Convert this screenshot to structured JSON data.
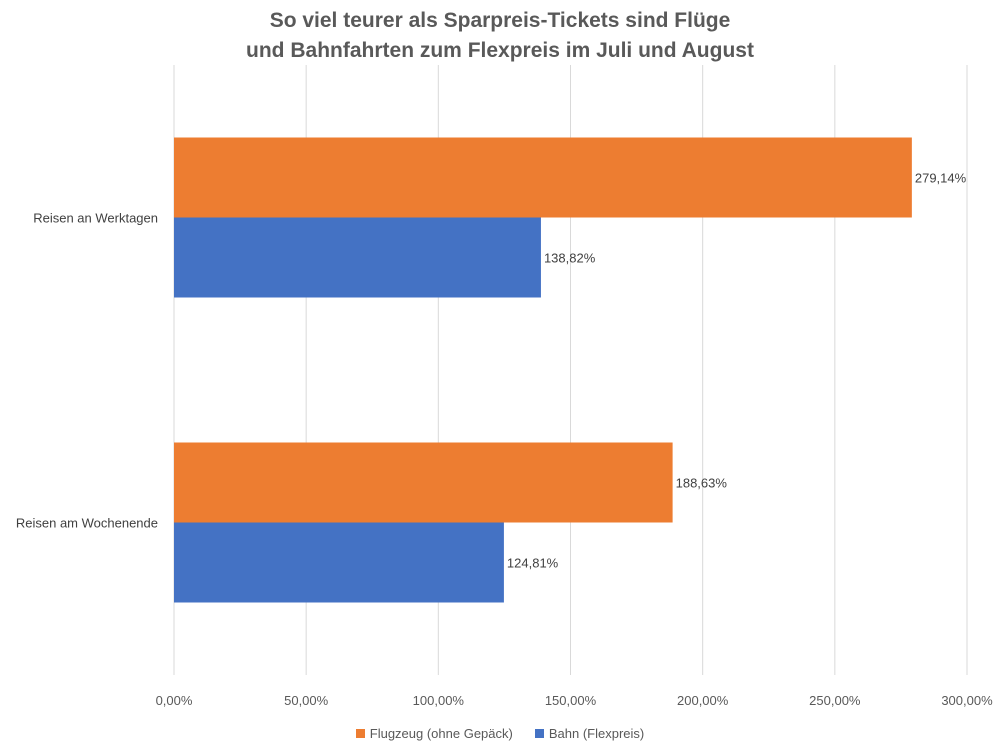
{
  "chart_data": {
    "type": "bar",
    "orientation": "horizontal",
    "title_lines": [
      "So viel teurer als Sparpreis-Tickets sind Flüge",
      "und Bahnfahrten zum Flexpreis im Juli und August"
    ],
    "categories": [
      "Reisen an Werktagen",
      "Reisen am Wochenende"
    ],
    "series": [
      {
        "name": "Flugzeug (ohne Gepäck)",
        "color": "#ED7D31",
        "values": [
          279.14,
          188.63
        ],
        "data_labels": [
          "279,14%",
          "188,63%"
        ]
      },
      {
        "name": "Bahn (Flexpreis)",
        "color": "#4472C4",
        "values": [
          138.82,
          124.81
        ],
        "data_labels": [
          "138,82%",
          "124,81%"
        ]
      }
    ],
    "x_ticks": [
      0,
      50,
      100,
      150,
      200,
      250,
      300
    ],
    "x_tick_labels": [
      "0,00%",
      "50,00%",
      "100,00%",
      "150,00%",
      "200,00%",
      "250,00%",
      "300,00%"
    ],
    "xlim": [
      0,
      300
    ],
    "grid": true,
    "legend_position": "bottom"
  }
}
